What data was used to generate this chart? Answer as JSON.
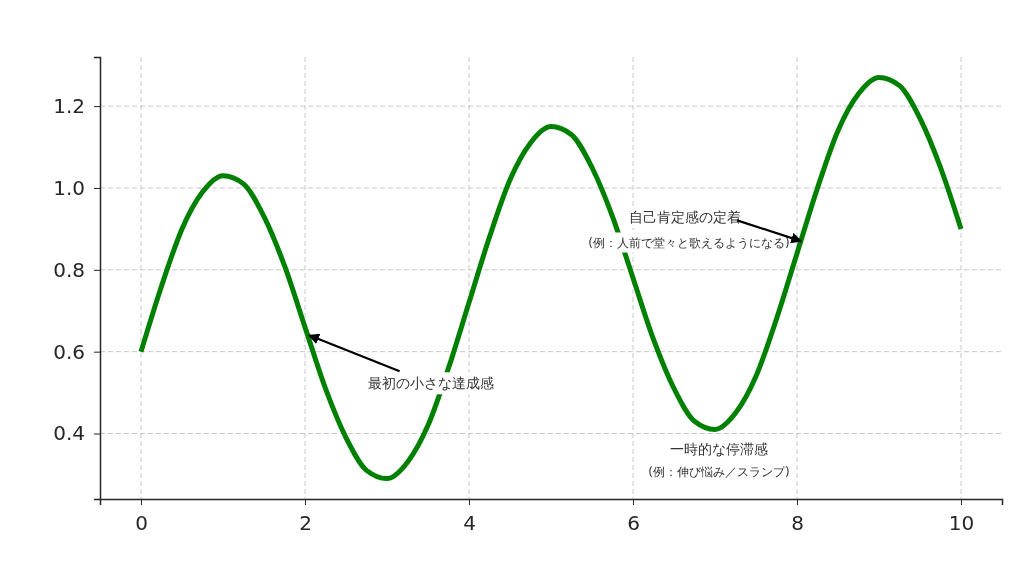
{
  "chart_data": {
    "type": "line",
    "x": [
      0,
      0.25,
      0.5,
      0.75,
      1,
      1.25,
      1.5,
      1.75,
      2,
      2.25,
      2.5,
      2.75,
      3,
      3.25,
      3.5,
      3.75,
      4,
      4.25,
      4.5,
      4.75,
      5,
      5.25,
      5.5,
      5.75,
      6,
      6.25,
      6.5,
      6.75,
      7,
      7.25,
      7.5,
      7.75,
      8,
      8.25,
      8.5,
      8.75,
      9,
      9.25,
      9.5,
      9.75,
      10
    ],
    "series": [
      {
        "color": "#008000",
        "values": [
          0.6,
          0.76,
          0.9,
          0.99,
          1.03,
          1.01,
          0.93,
          0.81,
          0.66,
          0.51,
          0.39,
          0.31,
          0.29,
          0.33,
          0.42,
          0.56,
          0.72,
          0.88,
          1.02,
          1.11,
          1.15,
          1.13,
          1.05,
          0.93,
          0.78,
          0.63,
          0.51,
          0.43,
          0.41,
          0.45,
          0.54,
          0.68,
          0.84,
          1.0,
          1.14,
          1.23,
          1.27,
          1.25,
          1.17,
          1.05,
          0.9
        ]
      }
    ],
    "xlim": [
      -0.5,
      10.5
    ],
    "ylim": [
      0.24,
      1.32
    ],
    "xticks": [
      0,
      2,
      4,
      6,
      8,
      10
    ],
    "yticks": [
      {
        "value": 0.4,
        "label": "0.4"
      },
      {
        "value": 0.6,
        "label": "0.6"
      },
      {
        "value": 0.8,
        "label": "0.8"
      },
      {
        "value": 1.0,
        "label": "1.0"
      },
      {
        "value": 1.2,
        "label": "1.2"
      }
    ],
    "grid": true,
    "marker": "none",
    "line_style": "solid",
    "annotations": [
      {
        "text": "最初の小さな達成感",
        "x": 2.05,
        "y": 0.64
      },
      {
        "text": "自己肯定感の定着",
        "x": 8.05,
        "y": 0.87
      },
      "(例：人前で堂々と歌えるようになる)",
      "一時的な停滞感",
      "(例：伸び悩み／スランプ)"
    ]
  }
}
